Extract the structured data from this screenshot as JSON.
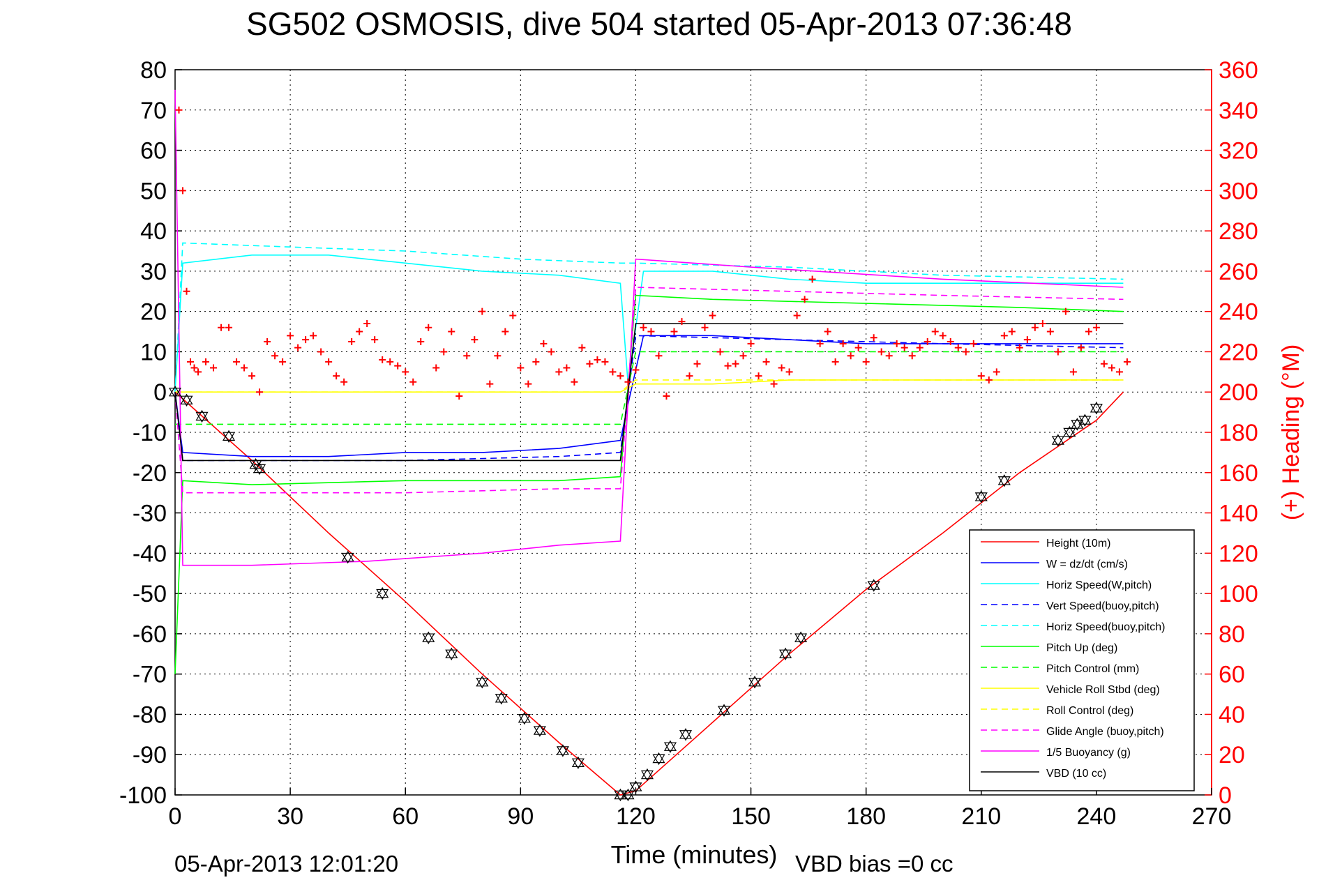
{
  "chart_data": {
    "type": "line",
    "title": "SG502 OSMOSIS, dive 504 started 05-Apr-2013 07:36:48",
    "xlabel": "Time (minutes)",
    "ylabel": "",
    "ylabel_right": "(+) Heading (°M)",
    "xlim": [
      0,
      270
    ],
    "ylim": [
      -100,
      80
    ],
    "ylim_right": [
      0,
      360
    ],
    "xticks": [
      0,
      30,
      60,
      90,
      120,
      150,
      180,
      210,
      240,
      270
    ],
    "yticks": [
      -100,
      -90,
      -80,
      -70,
      -60,
      -50,
      -40,
      -30,
      -20,
      -10,
      0,
      10,
      20,
      30,
      40,
      50,
      60,
      70,
      80
    ],
    "yticks_right": [
      0,
      20,
      40,
      60,
      80,
      100,
      120,
      140,
      160,
      180,
      200,
      220,
      240,
      260,
      280,
      300,
      320,
      340,
      360
    ],
    "grid": true,
    "legend_position": "bottom-right",
    "footer_left": "05-Apr-2013 12:01:20",
    "footer_right": "VBD bias =0 cc",
    "colors": {
      "height": "#ff0000",
      "w": "#0000ff",
      "horiz_speed": "#00ffff",
      "pitch": "#00ff00",
      "roll": "#ffff00",
      "buoyancy": "#ff00ff",
      "vbd": "#000000",
      "heading": "#ff0000",
      "right_axis": "#ff0000"
    },
    "series": [
      {
        "name": "Height (10m)",
        "color": "#ff0000",
        "dash": "solid",
        "x": [
          0,
          20,
          40,
          60,
          80,
          100,
          116,
          120,
          140,
          160,
          180,
          200,
          220,
          240,
          247
        ],
        "y": [
          0,
          -17,
          -35,
          -52,
          -70,
          -87,
          -100,
          -99,
          -82,
          -65,
          -49,
          -35,
          -20,
          -7,
          0
        ]
      },
      {
        "name": "W = dz/dt (cm/s)",
        "color": "#0000ff",
        "dash": "solid",
        "x": [
          0,
          2,
          20,
          40,
          60,
          80,
          100,
          116,
          118,
          122,
          140,
          160,
          180,
          200,
          220,
          240,
          247
        ],
        "y": [
          0,
          -15,
          -16,
          -16,
          -15,
          -15,
          -14,
          -12,
          -3,
          14,
          14,
          13,
          12,
          12,
          12,
          12,
          12
        ]
      },
      {
        "name": "Horiz Speed(W,pitch)",
        "color": "#00ffff",
        "dash": "solid",
        "x": [
          0,
          2,
          20,
          40,
          60,
          80,
          100,
          116,
          118,
          122,
          140,
          160,
          180,
          200,
          220,
          240,
          247
        ],
        "y": [
          0,
          32,
          34,
          34,
          32,
          30,
          29,
          27,
          2,
          30,
          30,
          28,
          27,
          27,
          27,
          27,
          27
        ]
      },
      {
        "name": "Vert Speed(buoy,pitch)",
        "color": "#0000ff",
        "dash": "dashed",
        "x": [
          0,
          2,
          20,
          60,
          100,
          116,
          120,
          160,
          200,
          247
        ],
        "y": [
          0,
          -17,
          -17,
          -17,
          -16,
          -15,
          14,
          13,
          12,
          11
        ]
      },
      {
        "name": "Horiz Speed(buoy,pitch)",
        "color": "#00ffff",
        "dash": "dashed",
        "x": [
          0,
          2,
          30,
          60,
          90,
          116,
          120,
          160,
          200,
          247
        ],
        "y": [
          0,
          37,
          36,
          35,
          33,
          32,
          32,
          31,
          29,
          28
        ]
      },
      {
        "name": "Pitch Up (deg)",
        "color": "#00ff00",
        "dash": "solid",
        "x": [
          0,
          2,
          20,
          60,
          100,
          116,
          120,
          140,
          180,
          220,
          247
        ],
        "y": [
          -70,
          -22,
          -23,
          -22,
          -22,
          -21,
          24,
          23,
          22,
          21,
          20
        ]
      },
      {
        "name": "Pitch Control (mm)",
        "color": "#00ff00",
        "dash": "dashed",
        "x": [
          0,
          2,
          116,
          120,
          247
        ],
        "y": [
          -8,
          -8,
          -8,
          10,
          10
        ]
      },
      {
        "name": "Vehicle Roll Stbd (deg)",
        "color": "#ffff00",
        "dash": "solid",
        "x": [
          0,
          4,
          20,
          40,
          60,
          80,
          100,
          116,
          120,
          140,
          160,
          180,
          200,
          220,
          240,
          247
        ],
        "y": [
          0,
          0,
          0,
          0,
          0,
          0,
          0,
          0,
          2,
          2,
          3,
          3,
          3,
          3,
          3,
          3
        ]
      },
      {
        "name": "Roll Control (deg)",
        "color": "#ffff00",
        "dash": "dashed",
        "x": [
          0,
          116,
          120,
          247
        ],
        "y": [
          0,
          0,
          3,
          3
        ]
      },
      {
        "name": "Glide Angle (buoy,pitch)",
        "color": "#ff00ff",
        "dash": "dashed",
        "x": [
          0,
          2,
          20,
          60,
          100,
          116,
          120,
          160,
          200,
          247
        ],
        "y": [
          0,
          -25,
          -25,
          -25,
          -24,
          -24,
          26,
          25,
          24,
          23
        ]
      },
      {
        "name": "1/5 Buoyancy (g)",
        "color": "#ff00ff",
        "dash": "solid",
        "x": [
          0,
          2,
          20,
          50,
          80,
          100,
          116,
          120,
          150,
          200,
          247
        ],
        "y": [
          75,
          -43,
          -43,
          -42,
          -40,
          -38,
          -37,
          33,
          31,
          28,
          26
        ]
      },
      {
        "name": "VBD (10 cc)",
        "color": "#000000",
        "dash": "solid",
        "x": [
          0,
          2,
          116,
          120,
          247
        ],
        "y": [
          0,
          -17,
          -17,
          17,
          17
        ]
      }
    ],
    "heading": {
      "name": "Heading (right axis, +)",
      "color": "#ff0000",
      "x": [
        1,
        2,
        3,
        4,
        5,
        6,
        8,
        10,
        12,
        14,
        16,
        18,
        20,
        22,
        24,
        26,
        28,
        30,
        32,
        34,
        36,
        38,
        40,
        42,
        44,
        46,
        48,
        50,
        52,
        54,
        56,
        58,
        60,
        62,
        64,
        66,
        68,
        70,
        72,
        74,
        76,
        78,
        80,
        82,
        84,
        86,
        88,
        90,
        92,
        94,
        96,
        98,
        100,
        102,
        104,
        106,
        108,
        110,
        112,
        114,
        116,
        118,
        120,
        122,
        124,
        126,
        128,
        130,
        132,
        134,
        136,
        138,
        140,
        142,
        144,
        146,
        148,
        150,
        152,
        154,
        156,
        158,
        160,
        162,
        164,
        166,
        168,
        170,
        172,
        174,
        176,
        178,
        180,
        182,
        184,
        186,
        188,
        190,
        192,
        194,
        196,
        198,
        200,
        202,
        204,
        206,
        208,
        210,
        212,
        214,
        216,
        218,
        220,
        222,
        224,
        226,
        228,
        230,
        232,
        234,
        236,
        238,
        240,
        242,
        244,
        246,
        248
      ],
      "y": [
        340,
        300,
        250,
        215,
        212,
        210,
        215,
        212,
        232,
        232,
        215,
        212,
        208,
        200,
        225,
        218,
        215,
        228,
        222,
        226,
        228,
        220,
        215,
        208,
        205,
        225,
        230,
        234,
        226,
        216,
        215,
        213,
        210,
        205,
        225,
        232,
        212,
        220,
        230,
        198,
        218,
        226,
        240,
        204,
        218,
        230,
        238,
        212,
        204,
        215,
        224,
        220,
        210,
        212,
        205,
        222,
        214,
        216,
        215,
        210,
        208,
        205,
        211,
        232,
        230,
        218,
        198,
        230,
        235,
        208,
        214,
        232,
        238,
        220,
        213,
        214,
        218,
        224,
        208,
        215,
        204,
        212,
        210,
        238,
        246,
        256,
        224,
        230,
        215,
        224,
        218,
        222,
        215,
        227,
        220,
        218,
        224,
        222,
        218,
        222,
        225,
        230,
        228,
        225,
        222,
        220,
        224,
        208,
        206,
        210,
        228,
        230,
        222,
        226,
        232,
        234,
        230,
        220,
        240,
        210,
        222,
        230,
        232,
        214,
        212,
        210,
        215
      ]
    },
    "markers": {
      "name": "Height samples",
      "x": [
        0,
        3,
        7,
        14,
        21,
        22,
        45,
        54,
        66,
        72,
        80,
        85,
        91,
        95,
        101,
        105,
        116,
        118,
        120,
        123,
        126,
        129,
        133,
        143,
        151,
        159,
        163,
        182,
        210,
        216,
        230,
        233,
        235,
        237,
        240
      ],
      "y": [
        0,
        -2,
        -6,
        -11,
        -18,
        -19,
        -41,
        -50,
        -61,
        -65,
        -72,
        -76,
        -81,
        -84,
        -89,
        -92,
        -100,
        -100,
        -98,
        -95,
        -91,
        -88,
        -85,
        -79,
        -72,
        -65,
        -61,
        -48,
        -26,
        -22,
        -12,
        -10,
        -8,
        -7,
        -4
      ]
    }
  }
}
